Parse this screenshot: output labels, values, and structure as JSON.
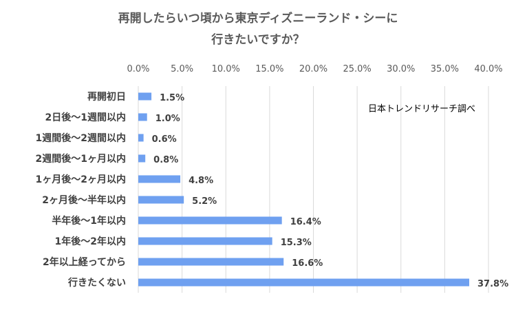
{
  "chart_data": {
    "type": "bar",
    "orientation": "horizontal",
    "title_lines": [
      "再開したらいつ頃から東京ディズニーランド・シーに",
      "行きたいですか？"
    ],
    "annotation": "日本トレンドリサーチ調べ",
    "xlim": [
      0,
      40
    ],
    "x_tick_labels": [
      "0.0%",
      "5.0%",
      "10.0%",
      "15.0%",
      "20.0%",
      "25.0%",
      "30.0%",
      "35.0%",
      "40.0%"
    ],
    "x_ticks": [
      0,
      5,
      10,
      15,
      20,
      25,
      30,
      35,
      40
    ],
    "categories": [
      "再開初日",
      "2日後～1週間以内",
      "1週間後～2週間以内",
      "2週間後～1ヶ月以内",
      "1ヶ月後～2ヶ月以内",
      "2ヶ月後～半年以内",
      "半年後～1年以内",
      "1年後～2年以内",
      "2年以上経ってから",
      "行きたくない"
    ],
    "values": [
      1.5,
      1.0,
      0.6,
      0.8,
      4.8,
      5.2,
      16.4,
      15.3,
      16.6,
      37.8
    ],
    "value_labels": [
      "1.5%",
      "1.0%",
      "0.6%",
      "0.8%",
      "4.8%",
      "5.2%",
      "16.4%",
      "15.3%",
      "16.6%",
      "37.8%"
    ],
    "bar_color": "#6fa0f0",
    "grid": true,
    "grid_color": "#d9d9d9",
    "legend": "none"
  }
}
